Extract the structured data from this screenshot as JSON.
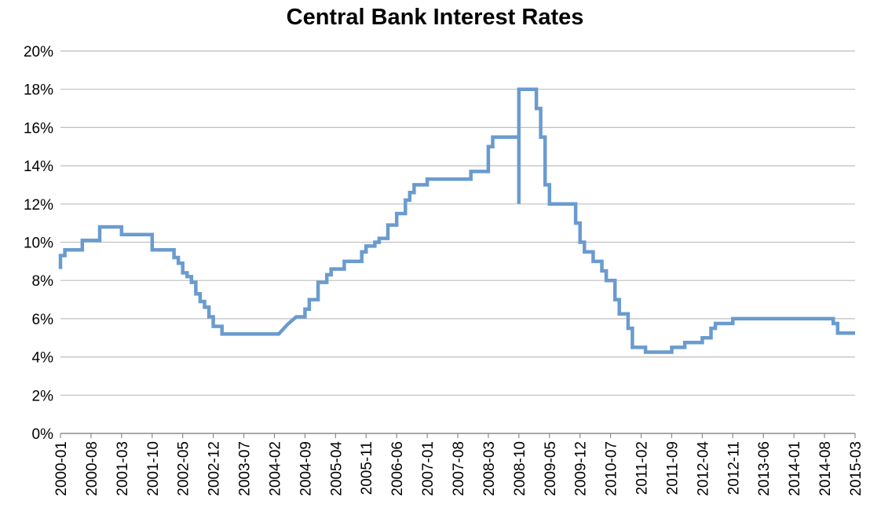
{
  "chart_data": {
    "type": "line",
    "title": "Central Bank Interest Rates",
    "xlabel": "",
    "ylabel": "",
    "ylim": [
      0,
      20
    ],
    "y_ticks": [
      "0%",
      "2%",
      "4%",
      "6%",
      "8%",
      "10%",
      "12%",
      "14%",
      "16%",
      "18%",
      "20%"
    ],
    "x_tick_labels": [
      "2000-01",
      "2000-08",
      "2001-03",
      "2001-10",
      "2002-05",
      "2002-12",
      "2003-07",
      "2004-02",
      "2004-09",
      "2005-04",
      "2005-11",
      "2006-06",
      "2007-01",
      "2007-08",
      "2008-03",
      "2008-10",
      "2009-05",
      "2009-12",
      "2010-07",
      "2011-02",
      "2011-09",
      "2012-04",
      "2012-11",
      "2013-06",
      "2014-01",
      "2014-08",
      "2015-03"
    ],
    "xlim": [
      "2000-01",
      "2015-03"
    ],
    "grid": "horizontal",
    "line_color": "#6a9bcf",
    "series": [
      {
        "name": "",
        "points": [
          [
            "2000-01",
            8.6
          ],
          [
            "2000-01",
            9.3
          ],
          [
            "2000-02",
            9.3
          ],
          [
            "2000-02",
            9.6
          ],
          [
            "2000-06",
            9.6
          ],
          [
            "2000-06",
            10.1
          ],
          [
            "2000-10",
            10.1
          ],
          [
            "2000-10",
            10.8
          ],
          [
            "2001-03",
            10.8
          ],
          [
            "2001-03",
            10.4
          ],
          [
            "2001-10",
            10.4
          ],
          [
            "2001-10",
            9.6
          ],
          [
            "2002-03",
            9.6
          ],
          [
            "2002-03",
            9.2
          ],
          [
            "2002-04",
            9.2
          ],
          [
            "2002-04",
            8.9
          ],
          [
            "2002-05",
            8.9
          ],
          [
            "2002-05",
            8.4
          ],
          [
            "2002-06",
            8.4
          ],
          [
            "2002-06",
            8.2
          ],
          [
            "2002-07",
            8.2
          ],
          [
            "2002-07",
            7.9
          ],
          [
            "2002-08",
            7.9
          ],
          [
            "2002-08",
            7.3
          ],
          [
            "2002-09",
            7.3
          ],
          [
            "2002-09",
            6.9
          ],
          [
            "2002-10",
            6.9
          ],
          [
            "2002-10",
            6.6
          ],
          [
            "2002-11",
            6.6
          ],
          [
            "2002-11",
            6.1
          ],
          [
            "2002-12",
            6.1
          ],
          [
            "2002-12",
            5.6
          ],
          [
            "2003-02",
            5.6
          ],
          [
            "2003-02",
            5.2
          ],
          [
            "2004-03",
            5.2
          ],
          [
            "2004-05",
            5.7
          ],
          [
            "2004-07",
            6.1
          ],
          [
            "2004-09",
            6.1
          ],
          [
            "2004-09",
            6.5
          ],
          [
            "2004-10",
            6.5
          ],
          [
            "2004-10",
            7.0
          ],
          [
            "2004-12",
            7.0
          ],
          [
            "2004-12",
            7.9
          ],
          [
            "2005-02",
            7.9
          ],
          [
            "2005-02",
            8.3
          ],
          [
            "2005-03",
            8.3
          ],
          [
            "2005-03",
            8.6
          ],
          [
            "2005-06",
            8.6
          ],
          [
            "2005-06",
            9.0
          ],
          [
            "2005-10",
            9.0
          ],
          [
            "2005-10",
            9.5
          ],
          [
            "2005-11",
            9.5
          ],
          [
            "2005-11",
            9.8
          ],
          [
            "2006-01",
            9.8
          ],
          [
            "2006-01",
            10.0
          ],
          [
            "2006-02",
            10.0
          ],
          [
            "2006-02",
            10.2
          ],
          [
            "2006-04",
            10.2
          ],
          [
            "2006-04",
            10.9
          ],
          [
            "2006-06",
            10.9
          ],
          [
            "2006-06",
            11.5
          ],
          [
            "2006-08",
            11.5
          ],
          [
            "2006-08",
            12.2
          ],
          [
            "2006-09",
            12.2
          ],
          [
            "2006-09",
            12.6
          ],
          [
            "2006-10",
            12.6
          ],
          [
            "2006-10",
            13.0
          ],
          [
            "2007-01",
            13.0
          ],
          [
            "2007-01",
            13.3
          ],
          [
            "2007-11",
            13.3
          ],
          [
            "2007-11",
            13.7
          ],
          [
            "2008-03",
            13.7
          ],
          [
            "2008-03",
            15.0
          ],
          [
            "2008-04",
            15.0
          ],
          [
            "2008-04",
            15.5
          ],
          [
            "2008-10",
            15.5
          ],
          [
            "2008-10",
            12.0
          ],
          [
            "2008-10",
            18.0
          ],
          [
            "2009-02",
            18.0
          ],
          [
            "2009-02",
            17.0
          ],
          [
            "2009-03",
            17.0
          ],
          [
            "2009-03",
            15.5
          ],
          [
            "2009-04",
            15.5
          ],
          [
            "2009-04",
            13.0
          ],
          [
            "2009-05",
            13.0
          ],
          [
            "2009-05",
            12.0
          ],
          [
            "2009-11",
            12.0
          ],
          [
            "2009-11",
            11.0
          ],
          [
            "2009-12",
            11.0
          ],
          [
            "2009-12",
            10.0
          ],
          [
            "2010-01",
            10.0
          ],
          [
            "2010-01",
            9.5
          ],
          [
            "2010-03",
            9.5
          ],
          [
            "2010-03",
            9.0
          ],
          [
            "2010-05",
            9.0
          ],
          [
            "2010-05",
            8.5
          ],
          [
            "2010-06",
            8.5
          ],
          [
            "2010-06",
            8.0
          ],
          [
            "2010-08",
            8.0
          ],
          [
            "2010-08",
            7.0
          ],
          [
            "2010-09",
            7.0
          ],
          [
            "2010-09",
            6.25
          ],
          [
            "2010-11",
            6.25
          ],
          [
            "2010-11",
            5.5
          ],
          [
            "2010-12",
            5.5
          ],
          [
            "2010-12",
            4.5
          ],
          [
            "2011-03",
            4.5
          ],
          [
            "2011-03",
            4.25
          ],
          [
            "2011-09",
            4.25
          ],
          [
            "2011-09",
            4.5
          ],
          [
            "2011-12",
            4.5
          ],
          [
            "2011-12",
            4.75
          ],
          [
            "2012-04",
            4.75
          ],
          [
            "2012-04",
            5.0
          ],
          [
            "2012-06",
            5.0
          ],
          [
            "2012-06",
            5.5
          ],
          [
            "2012-07",
            5.5
          ],
          [
            "2012-07",
            5.75
          ],
          [
            "2012-11",
            5.75
          ],
          [
            "2012-11",
            6.0
          ],
          [
            "2014-10",
            6.0
          ],
          [
            "2014-10",
            5.75
          ],
          [
            "2014-11",
            5.75
          ],
          [
            "2014-11",
            5.25
          ],
          [
            "2015-03",
            5.25
          ]
        ]
      }
    ]
  }
}
